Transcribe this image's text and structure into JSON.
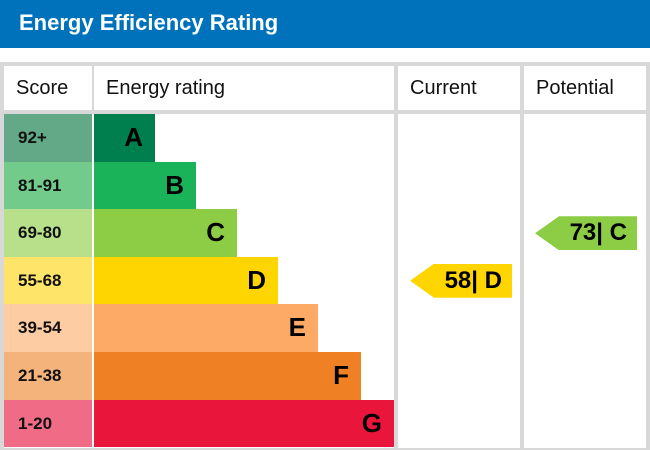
{
  "header": {
    "title": "Energy Efficiency Rating"
  },
  "chart_data": {
    "type": "table",
    "columns": [
      "Score",
      "Energy rating",
      "Current",
      "Potential"
    ],
    "bands": [
      {
        "score": "92+",
        "letter": "A",
        "color": "#007f4e",
        "light": "#63a887"
      },
      {
        "score": "81-91",
        "letter": "B",
        "color": "#1bb35a",
        "light": "#72cb8b"
      },
      {
        "score": "69-80",
        "letter": "C",
        "color": "#8ccd45",
        "light": "#b8e08b"
      },
      {
        "score": "55-68",
        "letter": "D",
        "color": "#ffd500",
        "light": "#ffe46a"
      },
      {
        "score": "39-54",
        "letter": "E",
        "color": "#fcaa65",
        "light": "#fdcca3"
      },
      {
        "score": "21-38",
        "letter": "F",
        "color": "#ef8023",
        "light": "#f4b37b"
      },
      {
        "score": "1-20",
        "letter": "G",
        "color": "#e9153b",
        "light": "#f06c86"
      }
    ],
    "current": {
      "value": 58,
      "letter": "D",
      "label": "58| D",
      "color": "#ffd500"
    },
    "potential": {
      "value": 73,
      "letter": "C",
      "label": "73| C",
      "color": "#8ccd45"
    }
  }
}
